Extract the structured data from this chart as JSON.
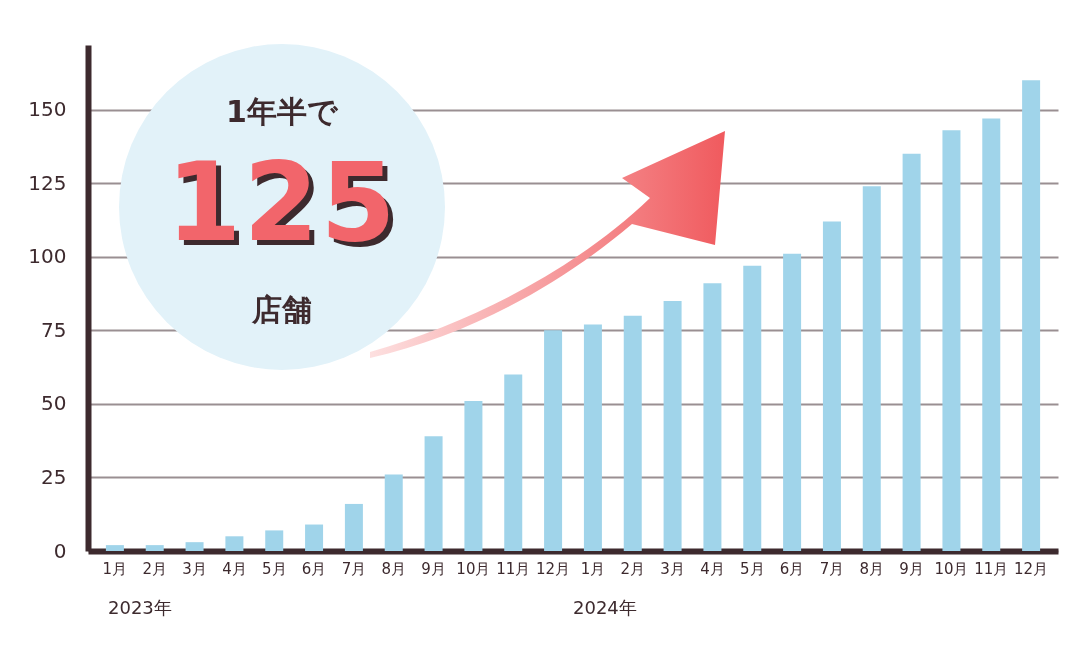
{
  "chart_data": {
    "type": "bar",
    "categories": [
      "1月",
      "2月",
      "3月",
      "4月",
      "5月",
      "6月",
      "7月",
      "8月",
      "9月",
      "10月",
      "11月",
      "12月",
      "1月",
      "2月",
      "3月",
      "4月",
      "5月",
      "6月",
      "7月",
      "8月",
      "9月",
      "10月",
      "11月",
      "12月"
    ],
    "values": [
      2,
      2,
      3,
      5,
      7,
      9,
      16,
      26,
      39,
      51,
      60,
      75,
      77,
      80,
      85,
      91,
      97,
      101,
      112,
      124,
      135,
      143,
      147,
      160
    ],
    "color": "#a0d4ea",
    "ylim": [
      0,
      172
    ],
    "yticks": [
      0,
      25,
      50,
      75,
      100,
      125,
      150
    ],
    "grid": "y",
    "annotations": [
      "1年半で",
      "125",
      "店舗",
      "2023年",
      "2024年"
    ]
  }
}
